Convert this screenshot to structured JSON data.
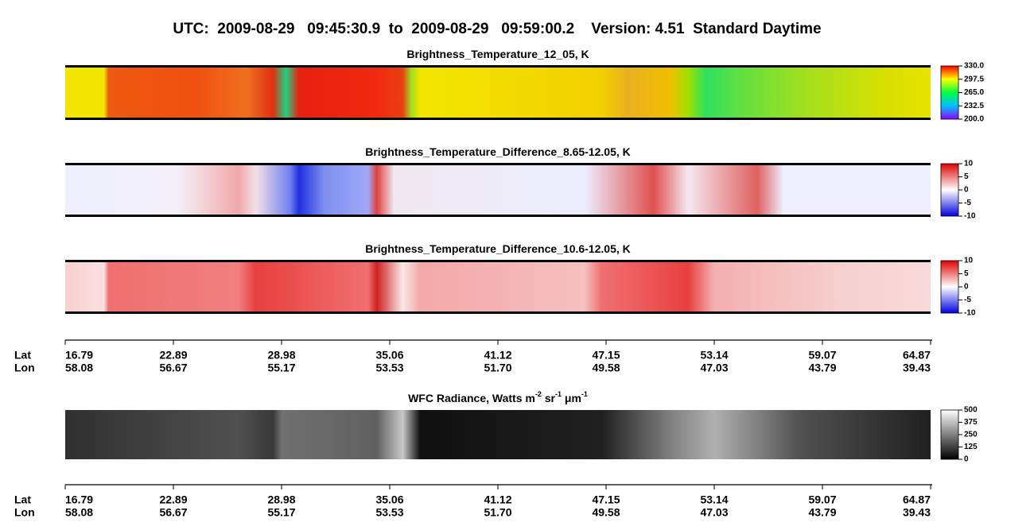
{
  "header": {
    "title": "UTC:  2009-08-29   09:45:30.9  to  2009-08-29   09:59:00.2    Version: 4.51  Standard Daytime"
  },
  "panels": [
    {
      "title": [
        "Brightness_Temperature_12_05, K"
      ],
      "colorbar": [
        "330.0",
        "297.5",
        "265.0",
        "232.5",
        "200.0"
      ]
    },
    {
      "title": [
        "Brightness_Temperature_Difference_8.65-12.05, K"
      ],
      "colorbar": [
        "10",
        "5",
        "0",
        "-5",
        "-10"
      ]
    },
    {
      "title": [
        "Brightness_Temperature_Difference_10.6-12.05, K"
      ],
      "colorbar": [
        "10",
        "5",
        "0",
        "-5",
        "-10"
      ]
    },
    {
      "title": [
        "WFC Radiance, Watts m",
        "-2",
        " sr",
        "-1",
        " μm",
        "-1"
      ],
      "colorbar": [
        "500",
        "375",
        "250",
        "125",
        "0"
      ]
    }
  ],
  "axes": [
    {
      "lat_label": "Lat",
      "lon_label": "Lon",
      "lat": [
        "16.79",
        "22.89",
        "28.98",
        "35.06",
        "41.12",
        "47.15",
        "53.14",
        "59.07",
        "64.87"
      ],
      "lon": [
        "58.08",
        "56.67",
        "55.17",
        "53.53",
        "51.70",
        "49.58",
        "47.03",
        "43.79",
        "39.43"
      ]
    },
    {
      "lat_label": "Lat",
      "lon_label": "Lon",
      "lat": [
        "16.79",
        "22.89",
        "28.98",
        "35.06",
        "41.12",
        "47.15",
        "53.14",
        "59.07",
        "64.87"
      ],
      "lon": [
        "58.08",
        "56.67",
        "55.17",
        "53.53",
        "51.70",
        "49.58",
        "47.03",
        "43.79",
        "39.43"
      ]
    }
  ]
}
